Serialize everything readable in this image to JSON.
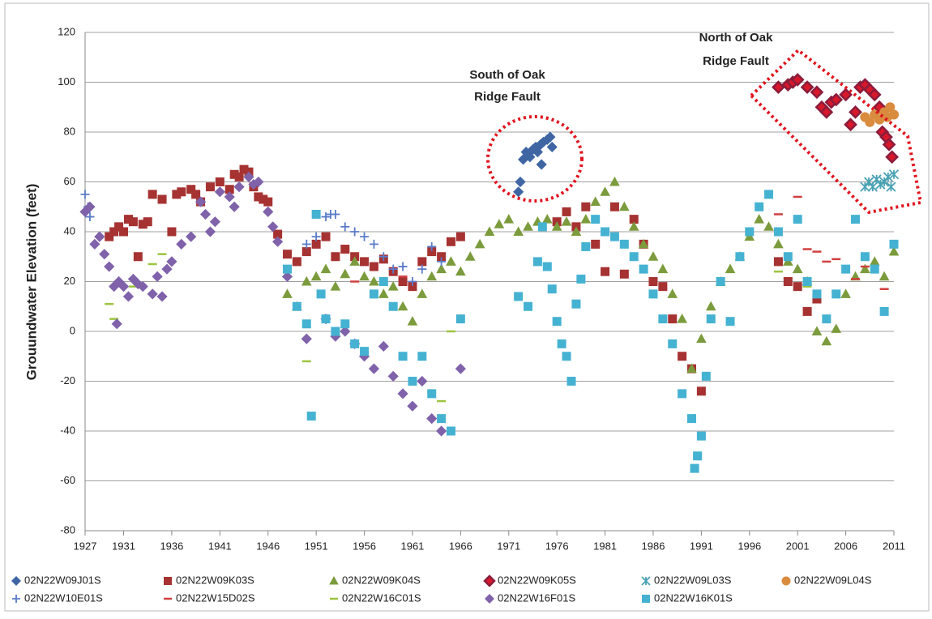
{
  "chart_data": {
    "type": "scatter",
    "y_label": "Grouundwater Elevation (feet)",
    "xlim": [
      1927,
      2011
    ],
    "xticks": [
      1927,
      1931,
      1936,
      1941,
      1946,
      1951,
      1956,
      1961,
      1966,
      1971,
      1976,
      1981,
      1986,
      1991,
      1996,
      2001,
      2006,
      2011
    ],
    "ylim": [
      -80,
      120
    ],
    "yticks": [
      -80,
      -60,
      -40,
      -20,
      0,
      20,
      40,
      60,
      80,
      100,
      120
    ],
    "grid": true,
    "annotations": [
      {
        "lines": [
          "South of Oak",
          "Ridge Fault"
        ]
      },
      {
        "lines": [
          "North of Oak",
          "Ridge Fault"
        ]
      }
    ],
    "series": [
      {
        "name": "02N22W09J01S",
        "color": "#3f66a3",
        "marker": "diamond",
        "x": [
          1972,
          1972.2,
          1972.5,
          1972.8,
          1973.2,
          1973.5,
          1973.8,
          1974,
          1974.3,
          1974.4,
          1974.6,
          1975,
          1975.3,
          1975.5
        ],
        "values": [
          56,
          60,
          69,
          72,
          70,
          73,
          74,
          72,
          75,
          67,
          76,
          77,
          78,
          74
        ]
      },
      {
        "name": "02N22W09K03S",
        "color": "#a63232",
        "marker": "square",
        "x": [
          1929.5,
          1930,
          1930.5,
          1931,
          1931.5,
          1932,
          1932.5,
          1933,
          1933.5,
          1934,
          1935,
          1936,
          1936.5,
          1937,
          1938,
          1938.5,
          1939,
          1940,
          1941,
          1942,
          1942.5,
          1943,
          1943.5,
          1944,
          1944.5,
          1945,
          1945.5,
          1946,
          1947,
          1948,
          1949,
          1950,
          1951,
          1952,
          1953,
          1954,
          1955,
          1956,
          1957,
          1958,
          1959,
          1960,
          1961,
          1962,
          1963,
          1964,
          1965,
          1966,
          1976,
          1977,
          1978,
          1979,
          1980,
          1981,
          1982,
          1983,
          1984,
          1985,
          1986,
          1987,
          1988,
          1989,
          1990,
          1991,
          1999,
          2000,
          2001,
          2002,
          2003
        ],
        "values": [
          38,
          40,
          42,
          40,
          45,
          44,
          30,
          43,
          44,
          55,
          53,
          40,
          55,
          56,
          57,
          55,
          52,
          58,
          60,
          57,
          63,
          62,
          65,
          64,
          58,
          54,
          53,
          52,
          39,
          31,
          28,
          32,
          35,
          38,
          30,
          33,
          30,
          28,
          26,
          29,
          24,
          20,
          18,
          28,
          32,
          30,
          36,
          38,
          44,
          48,
          42,
          50,
          35,
          24,
          50,
          23,
          45,
          35,
          20,
          18,
          5,
          -10,
          -15,
          -24,
          28,
          20,
          18,
          8,
          13
        ]
      },
      {
        "name": "02N22W09K04S",
        "color": "#7b9b3c",
        "marker": "triangle",
        "x": [
          1948,
          1949,
          1950,
          1951,
          1952,
          1953,
          1954,
          1955,
          1956,
          1957,
          1958,
          1959,
          1960,
          1961,
          1962,
          1963,
          1964,
          1965,
          1966,
          1967,
          1968,
          1969,
          1970,
          1971,
          1972,
          1973,
          1974,
          1975,
          1976,
          1977,
          1978,
          1979,
          1980,
          1981,
          1982,
          1983,
          1984,
          1985,
          1986,
          1987,
          1988,
          1989,
          1990,
          1991,
          1992,
          1993,
          1994,
          1995,
          1996,
          1997,
          1998,
          1999,
          2000,
          2001,
          2002,
          2003,
          2004,
          2005,
          2006,
          2007,
          2008,
          2009,
          2010,
          2011
        ],
        "values": [
          15,
          10,
          20,
          22,
          25,
          18,
          23,
          28,
          22,
          20,
          15,
          18,
          10,
          4,
          15,
          22,
          25,
          28,
          24,
          30,
          35,
          40,
          43,
          45,
          40,
          42,
          44,
          45,
          42,
          44,
          40,
          45,
          52,
          56,
          60,
          50,
          42,
          35,
          30,
          25,
          15,
          5,
          -15,
          -3,
          10,
          20,
          25,
          30,
          38,
          45,
          42,
          35,
          28,
          25,
          20,
          0,
          -4,
          1,
          15,
          22,
          25,
          28,
          22,
          32
        ]
      },
      {
        "name": "02N22W09K05S",
        "color": "#8a1c3c",
        "marker": "diamond-dot",
        "x": [
          1999,
          2000,
          2000.5,
          2001,
          2002,
          2003,
          2003.5,
          2004,
          2004.5,
          2005,
          2006,
          2006.5,
          2007,
          2007.5,
          2008,
          2008.5,
          2009,
          2009.5,
          2009.8,
          2010.2,
          2010.5,
          2010.8
        ],
        "values": [
          98,
          99,
          100,
          101,
          98,
          96,
          90,
          88,
          92,
          93,
          95,
          83,
          88,
          98,
          99,
          97,
          95,
          90,
          80,
          78,
          75,
          70
        ]
      },
      {
        "name": "02N22W09L03S",
        "color": "#4aa2b4",
        "marker": "asterisk",
        "x": [
          2008,
          2008.4,
          2008.8,
          2009.2,
          2009.6,
          2010,
          2010.4,
          2010.7,
          2011
        ],
        "values": [
          58,
          60,
          58,
          61,
          59,
          60,
          62,
          58,
          63
        ]
      },
      {
        "name": "02N22W09L04S",
        "color": "#d98b3e",
        "marker": "circle",
        "x": [
          2008,
          2008.5,
          2009,
          2009.5,
          2010,
          2010.3,
          2010.6,
          2011
        ],
        "values": [
          86,
          84,
          87,
          85,
          88,
          86,
          90,
          87
        ]
      },
      {
        "name": "02N22W10E01S",
        "color": "#5a7bc9",
        "marker": "plus",
        "x": [
          1927,
          1927.3,
          1927.5,
          1950,
          1951,
          1952,
          1952.5,
          1953,
          1954,
          1955,
          1956,
          1957,
          1958,
          1959,
          1960,
          1961,
          1962,
          1963,
          1964
        ],
        "values": [
          55,
          50,
          46,
          35,
          38,
          46,
          47,
          47,
          42,
          40,
          38,
          35,
          30,
          25,
          26,
          20,
          25,
          34,
          28
        ]
      },
      {
        "name": "02N22W15D02S",
        "color": "#d04040",
        "marker": "dash",
        "x": [
          1955,
          1960,
          1999,
          2001,
          2002,
          2003,
          2004,
          2005,
          2007,
          2008,
          2010
        ],
        "values": [
          20,
          22,
          47,
          54,
          33,
          32,
          28,
          29,
          21,
          26,
          17
        ]
      },
      {
        "name": "02N22W16C01S",
        "color": "#9cc43e",
        "marker": "dash",
        "x": [
          1929.5,
          1930,
          1932,
          1934,
          1935,
          1950,
          1953,
          1964,
          1965,
          1999,
          2002
        ],
        "values": [
          11,
          5,
          18,
          27,
          31,
          -12,
          -2,
          -28,
          0,
          24,
          18
        ]
      },
      {
        "name": "02N22W16F01S",
        "color": "#7f62aa",
        "marker": "diamond",
        "x": [
          1927,
          1927.5,
          1928,
          1928.5,
          1929,
          1929.5,
          1930,
          1930.3,
          1930.5,
          1931,
          1931.5,
          1932,
          1932.5,
          1933,
          1934,
          1934.5,
          1935,
          1935.5,
          1936,
          1937,
          1938,
          1939,
          1939.5,
          1940,
          1940.5,
          1941,
          1942,
          1942.5,
          1943,
          1944,
          1944.5,
          1945,
          1946,
          1946.5,
          1947,
          1948,
          1950,
          1952,
          1953,
          1954,
          1955,
          1956,
          1957,
          1958,
          1959,
          1960,
          1961,
          1962,
          1963,
          1964,
          1966
        ],
        "values": [
          48,
          50,
          35,
          38,
          31,
          26,
          18,
          3,
          20,
          18,
          14,
          21,
          19,
          18,
          15,
          22,
          14,
          25,
          28,
          35,
          38,
          52,
          47,
          40,
          44,
          56,
          54,
          50,
          58,
          62,
          59,
          60,
          48,
          42,
          36,
          22,
          -3,
          5,
          -2,
          0,
          -5,
          -10,
          -15,
          -6,
          -18,
          -25,
          -30,
          -20,
          -35,
          -40,
          -15
        ]
      },
      {
        "name": "02N22W16K01S",
        "color": "#45b2d2",
        "marker": "square",
        "x": [
          1948,
          1949,
          1950,
          1950.5,
          1951,
          1951.5,
          1952,
          1953,
          1954,
          1955,
          1956,
          1957,
          1958,
          1959,
          1960,
          1961,
          1962,
          1963,
          1964,
          1965,
          1966,
          1972,
          1973,
          1974,
          1974.5,
          1975,
          1975.5,
          1976,
          1976.5,
          1977,
          1977.5,
          1978,
          1978.5,
          1979,
          1980,
          1981,
          1982,
          1983,
          1984,
          1985,
          1986,
          1987,
          1988,
          1989,
          1990,
          1990.3,
          1990.6,
          1991,
          1991.5,
          1992,
          1993,
          1994,
          1995,
          1996,
          1997,
          1998,
          1999,
          2000,
          2001,
          2002,
          2003,
          2004,
          2005,
          2006,
          2007,
          2008,
          2009,
          2010,
          2011
        ],
        "values": [
          25,
          10,
          3,
          -34,
          47,
          15,
          5,
          0,
          3,
          -5,
          -8,
          15,
          20,
          10,
          -10,
          -20,
          -10,
          -25,
          -35,
          -40,
          5,
          14,
          10,
          28,
          42,
          26,
          17,
          4,
          -5,
          -10,
          -20,
          11,
          21,
          34,
          45,
          40,
          38,
          35,
          30,
          25,
          15,
          5,
          -5,
          -25,
          -35,
          -55,
          -50,
          -42,
          -18,
          5,
          20,
          4,
          30,
          40,
          50,
          55,
          40,
          30,
          45,
          20,
          15,
          5,
          15,
          25,
          45,
          30,
          25,
          8,
          35
        ]
      }
    ]
  }
}
